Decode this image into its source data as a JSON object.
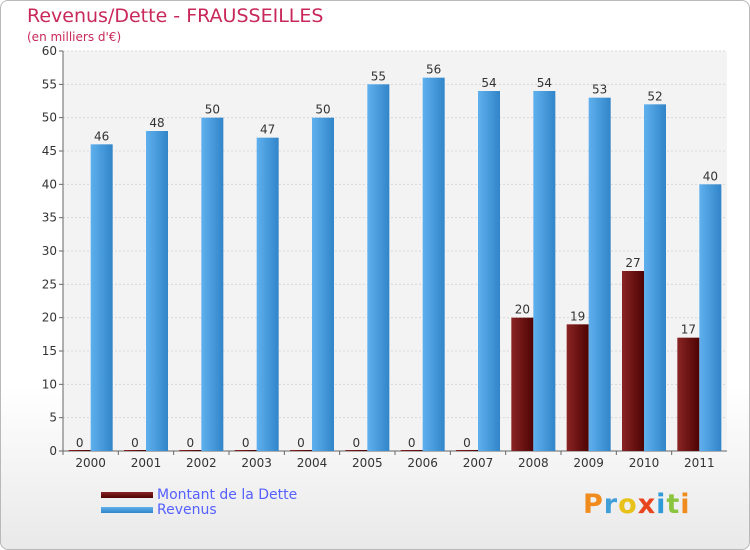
{
  "chart_data": {
    "type": "bar",
    "title": "Revenus/Dette - FRAUSSEILLES",
    "subtitle": "(en milliers d'€)",
    "categories": [
      "2000",
      "2001",
      "2002",
      "2003",
      "2004",
      "2005",
      "2006",
      "2007",
      "2008",
      "2009",
      "2010",
      "2011"
    ],
    "series": [
      {
        "name": "Montant de la Dette",
        "color": "#6e0a0a",
        "values": [
          0,
          0,
          0,
          0,
          0,
          0,
          0,
          0,
          20,
          19,
          27,
          17
        ]
      },
      {
        "name": "Revenus",
        "color": "#4c9fe0",
        "values": [
          46,
          48,
          50,
          47,
          50,
          55,
          56,
          54,
          54,
          53,
          52,
          40
        ]
      }
    ],
    "ylim": [
      0,
      60
    ],
    "yticks": [
      0,
      5,
      10,
      15,
      20,
      25,
      30,
      35,
      40,
      45,
      50,
      55,
      60
    ],
    "grid": true,
    "legend_position": "bottom-left"
  },
  "branding": {
    "logo_text": "Proxiti",
    "logo_letters": [
      "P",
      "r",
      "o",
      "x",
      "i",
      "t",
      "i"
    ],
    "logo_colors": [
      "#f08c1e",
      "#3f9fd8",
      "#e8c21a",
      "#e8451e",
      "#2f9ad8",
      "#8bc53f",
      "#f08c1e"
    ]
  }
}
